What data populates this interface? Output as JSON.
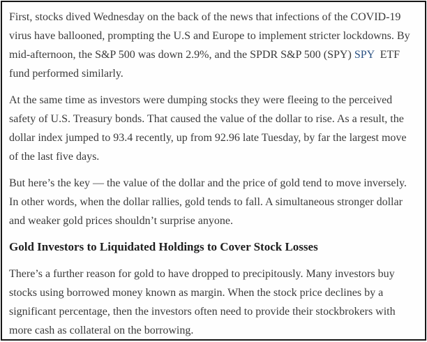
{
  "page": {
    "background_color": "#ffffff",
    "border_color": "#161616",
    "text_color": "#3a3a3a",
    "heading_color": "#1f1f1f",
    "link_color": "#2b5283"
  },
  "article": {
    "paragraph_1": {
      "before_link": "First, stocks dived Wednesday on the back of the news that infections of the COVID-19 virus have ballooned, prompting the U.S and Europe to implement stricter lockdowns. By mid-afternoon, the S&P 500 was down 2.9%, and the SPDR S&P 500 (SPY) ",
      "link_text": "SPY",
      "after_link": "  ETF fund performed similarly."
    },
    "paragraph_2": "At the same time as investors were dumping stocks they were fleeing to the perceived safety of U.S. Treasury bonds. That caused the value of the dollar to rise. As a result, the dollar index jumped to 93.4 recently, up from 92.96 late Tuesday, by far the largest move of the last five days.",
    "paragraph_3": "But here’s the key — the value of the dollar and the price of gold tend to move inversely. In other words, when the dollar rallies, gold tends to fall. A simultaneous stronger dollar and weaker gold prices shouldn’t surprise anyone.",
    "heading": "Gold Investors to Liquidated Holdings to Cover Stock Losses",
    "paragraph_4": "There’s a further reason for gold to have dropped to precipitously. Many investors buy stocks using borrowed money known as margin. When the stock price declines by a significant percentage, then the investors often need to provide their stockbrokers with more cash as collateral on the borrowing."
  }
}
